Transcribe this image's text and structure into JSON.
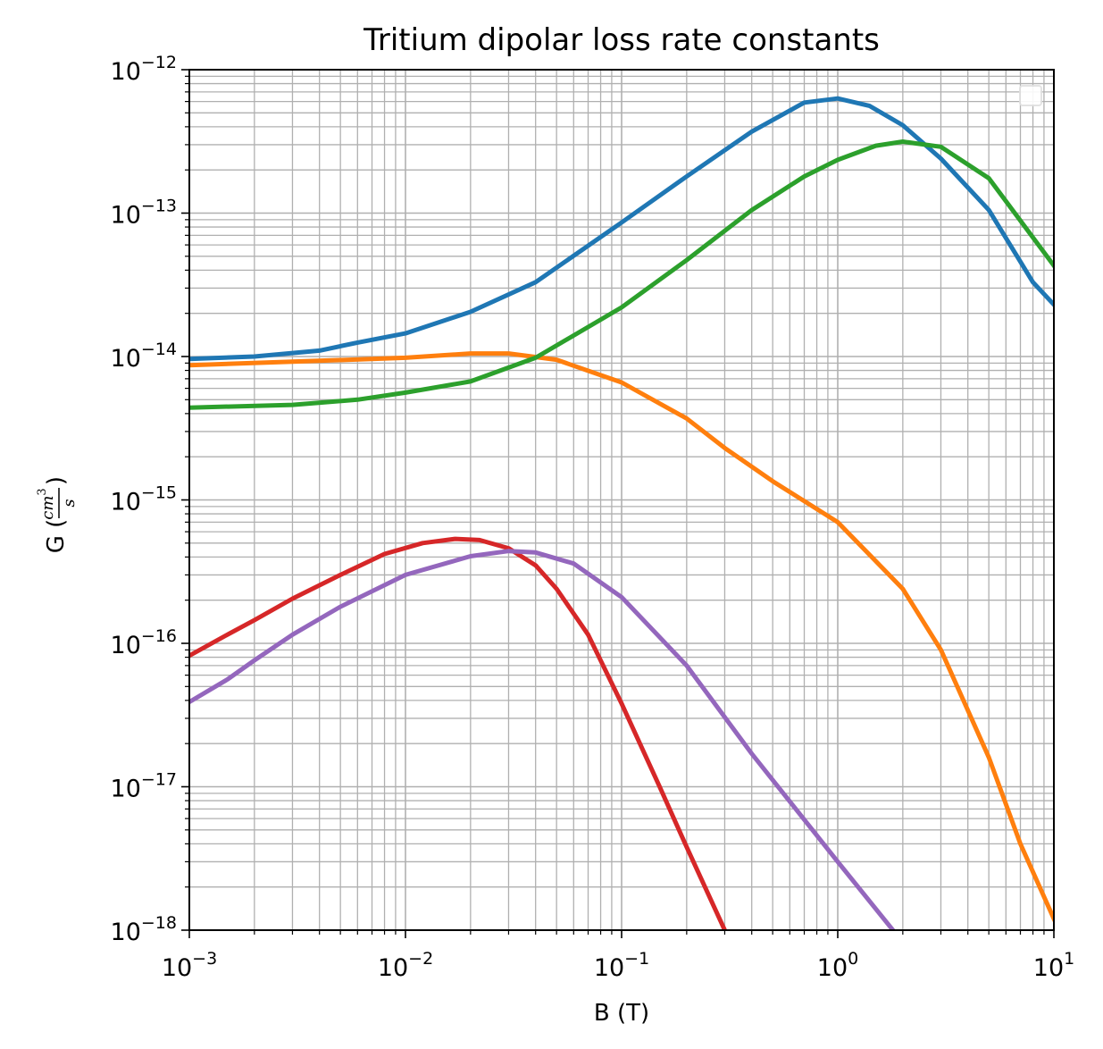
{
  "chart_data": {
    "type": "line",
    "title": "Tritium dipolar loss rate constants",
    "xlabel": "B (T)",
    "ylabel": {
      "prefix": "G (",
      "numerator": "cm",
      "numerator_exp": "3",
      "denominator": "s",
      "suffix": ")"
    },
    "xscale": "log",
    "yscale": "log",
    "xlim": [
      0.001,
      10
    ],
    "ylim": [
      1e-18,
      1e-12
    ],
    "grid": true,
    "legend": {
      "position": "top-right",
      "entries": []
    },
    "x_ticks": [
      {
        "base": "10",
        "exp": "−3",
        "value": 0.001
      },
      {
        "base": "10",
        "exp": "−2",
        "value": 0.01
      },
      {
        "base": "10",
        "exp": "−1",
        "value": 0.1
      },
      {
        "base": "10",
        "exp": "0",
        "value": 1
      },
      {
        "base": "10",
        "exp": "1",
        "value": 10
      }
    ],
    "y_ticks": [
      {
        "base": "10",
        "exp": "−12",
        "value": 1e-12
      },
      {
        "base": "10",
        "exp": "−13",
        "value": 1e-13
      },
      {
        "base": "10",
        "exp": "−14",
        "value": 1e-14
      },
      {
        "base": "10",
        "exp": "−15",
        "value": 1e-15
      },
      {
        "base": "10",
        "exp": "−16",
        "value": 1e-16
      },
      {
        "base": "10",
        "exp": "−17",
        "value": 1e-17
      },
      {
        "base": "10",
        "exp": "−18",
        "value": 1e-18
      }
    ],
    "series": [
      {
        "color": "#1f77b4",
        "points": [
          [
            0.001,
            9.6e-15
          ],
          [
            0.002,
            1e-14
          ],
          [
            0.004,
            1.1e-14
          ],
          [
            0.006,
            1.25e-14
          ],
          [
            0.01,
            1.45e-14
          ],
          [
            0.02,
            2.05e-14
          ],
          [
            0.04,
            3.3e-14
          ],
          [
            0.1,
            8.6e-14
          ],
          [
            0.2,
            1.8e-13
          ],
          [
            0.4,
            3.7e-13
          ],
          [
            0.7,
            5.9e-13
          ],
          [
            1.0,
            6.3e-13
          ],
          [
            1.4,
            5.6e-13
          ],
          [
            2.0,
            4.1e-13
          ],
          [
            3.0,
            2.4e-13
          ],
          [
            5.0,
            1.05e-13
          ],
          [
            8.0,
            3.3e-14
          ],
          [
            10.0,
            2.3e-14
          ]
        ]
      },
      {
        "color": "#ff7f0e",
        "points": [
          [
            0.001,
            8.7e-15
          ],
          [
            0.003,
            9.2e-15
          ],
          [
            0.01,
            9.8e-15
          ],
          [
            0.02,
            1.05e-14
          ],
          [
            0.03,
            1.05e-14
          ],
          [
            0.05,
            9.5e-15
          ],
          [
            0.1,
            6.6e-15
          ],
          [
            0.2,
            3.7e-15
          ],
          [
            0.3,
            2.3e-15
          ],
          [
            0.5,
            1.35e-15
          ],
          [
            1.0,
            7e-16
          ],
          [
            2.0,
            2.4e-16
          ],
          [
            3.0,
            9e-17
          ],
          [
            5.0,
            1.6e-17
          ],
          [
            7.0,
            4e-18
          ],
          [
            10.0,
            1.2e-18
          ]
        ]
      },
      {
        "color": "#2ca02c",
        "points": [
          [
            0.001,
            4.4e-15
          ],
          [
            0.003,
            4.6e-15
          ],
          [
            0.006,
            5e-15
          ],
          [
            0.01,
            5.6e-15
          ],
          [
            0.02,
            6.7e-15
          ],
          [
            0.04,
            9.8e-15
          ],
          [
            0.1,
            2.2e-14
          ],
          [
            0.2,
            4.7e-14
          ],
          [
            0.4,
            1.05e-13
          ],
          [
            0.7,
            1.8e-13
          ],
          [
            1.0,
            2.35e-13
          ],
          [
            1.5,
            2.95e-13
          ],
          [
            2.0,
            3.15e-13
          ],
          [
            3.0,
            2.9e-13
          ],
          [
            5.0,
            1.75e-13
          ],
          [
            10.0,
            4.3e-14
          ]
        ]
      },
      {
        "color": "#d62728",
        "points": [
          [
            0.001,
            8.2e-17
          ],
          [
            0.0015,
            1.15e-16
          ],
          [
            0.002,
            1.45e-16
          ],
          [
            0.003,
            2.05e-16
          ],
          [
            0.005,
            3e-16
          ],
          [
            0.008,
            4.2e-16
          ],
          [
            0.012,
            5e-16
          ],
          [
            0.017,
            5.35e-16
          ],
          [
            0.022,
            5.25e-16
          ],
          [
            0.03,
            4.6e-16
          ],
          [
            0.04,
            3.5e-16
          ],
          [
            0.05,
            2.4e-16
          ],
          [
            0.07,
            1.15e-16
          ],
          [
            0.1,
            3.8e-17
          ],
          [
            0.15,
            1e-17
          ],
          [
            0.2,
            3.8e-18
          ],
          [
            0.3,
            1e-18
          ]
        ]
      },
      {
        "color": "#9467bd",
        "points": [
          [
            0.001,
            3.9e-17
          ],
          [
            0.0015,
            5.6e-17
          ],
          [
            0.002,
            7.6e-17
          ],
          [
            0.003,
            1.15e-16
          ],
          [
            0.005,
            1.8e-16
          ],
          [
            0.01,
            3e-16
          ],
          [
            0.02,
            4.05e-16
          ],
          [
            0.03,
            4.4e-16
          ],
          [
            0.04,
            4.3e-16
          ],
          [
            0.06,
            3.6e-16
          ],
          [
            0.1,
            2.1e-16
          ],
          [
            0.2,
            7e-17
          ],
          [
            0.4,
            1.7e-17
          ],
          [
            1.0,
            3e-18
          ],
          [
            1.8,
            1e-18
          ]
        ]
      }
    ]
  }
}
